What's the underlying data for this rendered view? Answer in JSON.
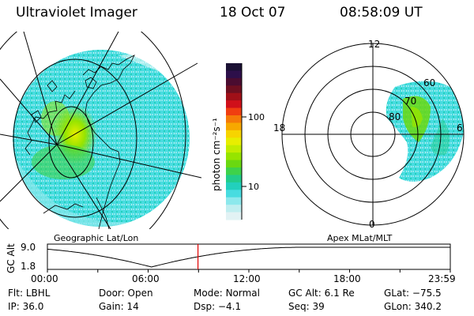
{
  "header": {
    "instrument": "Ultraviolet Imager",
    "date": "18 Oct 07",
    "time": "08:58:09 UT"
  },
  "colorbar": {
    "unit_label": "photon cm⁻²s⁻¹",
    "ticks": [
      "100",
      "10"
    ],
    "colors": [
      "#1a1033",
      "#2d0f4a",
      "#4a0c30",
      "#6e0f20",
      "#a01018",
      "#d0101a",
      "#f03e10",
      "#f57a08",
      "#f7a800",
      "#f7d400",
      "#e8ee00",
      "#c2ec00",
      "#96e400",
      "#6ad810",
      "#3ed24a",
      "#22cc8a",
      "#22d0bc",
      "#48dce0",
      "#8ce8ec",
      "#c0eef0",
      "#e2f2f4"
    ]
  },
  "panels": {
    "left_label": "Geographic Lat/Lon",
    "right_label": "Apex MLat/MLT",
    "mlt_labels": {
      "top": "12",
      "left": "18",
      "right": "6",
      "bottom": "0"
    },
    "mlat_labels": [
      "60",
      "70",
      "80"
    ]
  },
  "altitude_plot": {
    "ylabel": "GC Alt",
    "yticks": [
      "9.0",
      "1.8"
    ],
    "xticks": [
      "00:00",
      "06:00",
      "12:00",
      "18:00",
      "23:59"
    ],
    "marker_hour": 8.97
  },
  "status": {
    "row1": [
      {
        "label": "Flt:",
        "value": "LBHL"
      },
      {
        "label": "Door:",
        "value": "Open"
      },
      {
        "label": "Mode:",
        "value": "Normal"
      },
      {
        "label": "GC Alt:",
        "value": "6.1 Re"
      },
      {
        "label": "GLat:",
        "value": "−75.5"
      }
    ],
    "row2": [
      {
        "label": "IP:",
        "value": "36.0"
      },
      {
        "label": "Gain:",
        "value": "14"
      },
      {
        "label": "Dsp:",
        "value": "−4.1"
      },
      {
        "label": "Seq:",
        "value": "39"
      },
      {
        "label": "GLon:",
        "value": "340.2"
      }
    ]
  },
  "colors": {
    "marker": "#e00000",
    "aurora_dim": "#48dce0",
    "aurora_mid": "#6ad810",
    "aurora_bright": "#e8ee00"
  }
}
